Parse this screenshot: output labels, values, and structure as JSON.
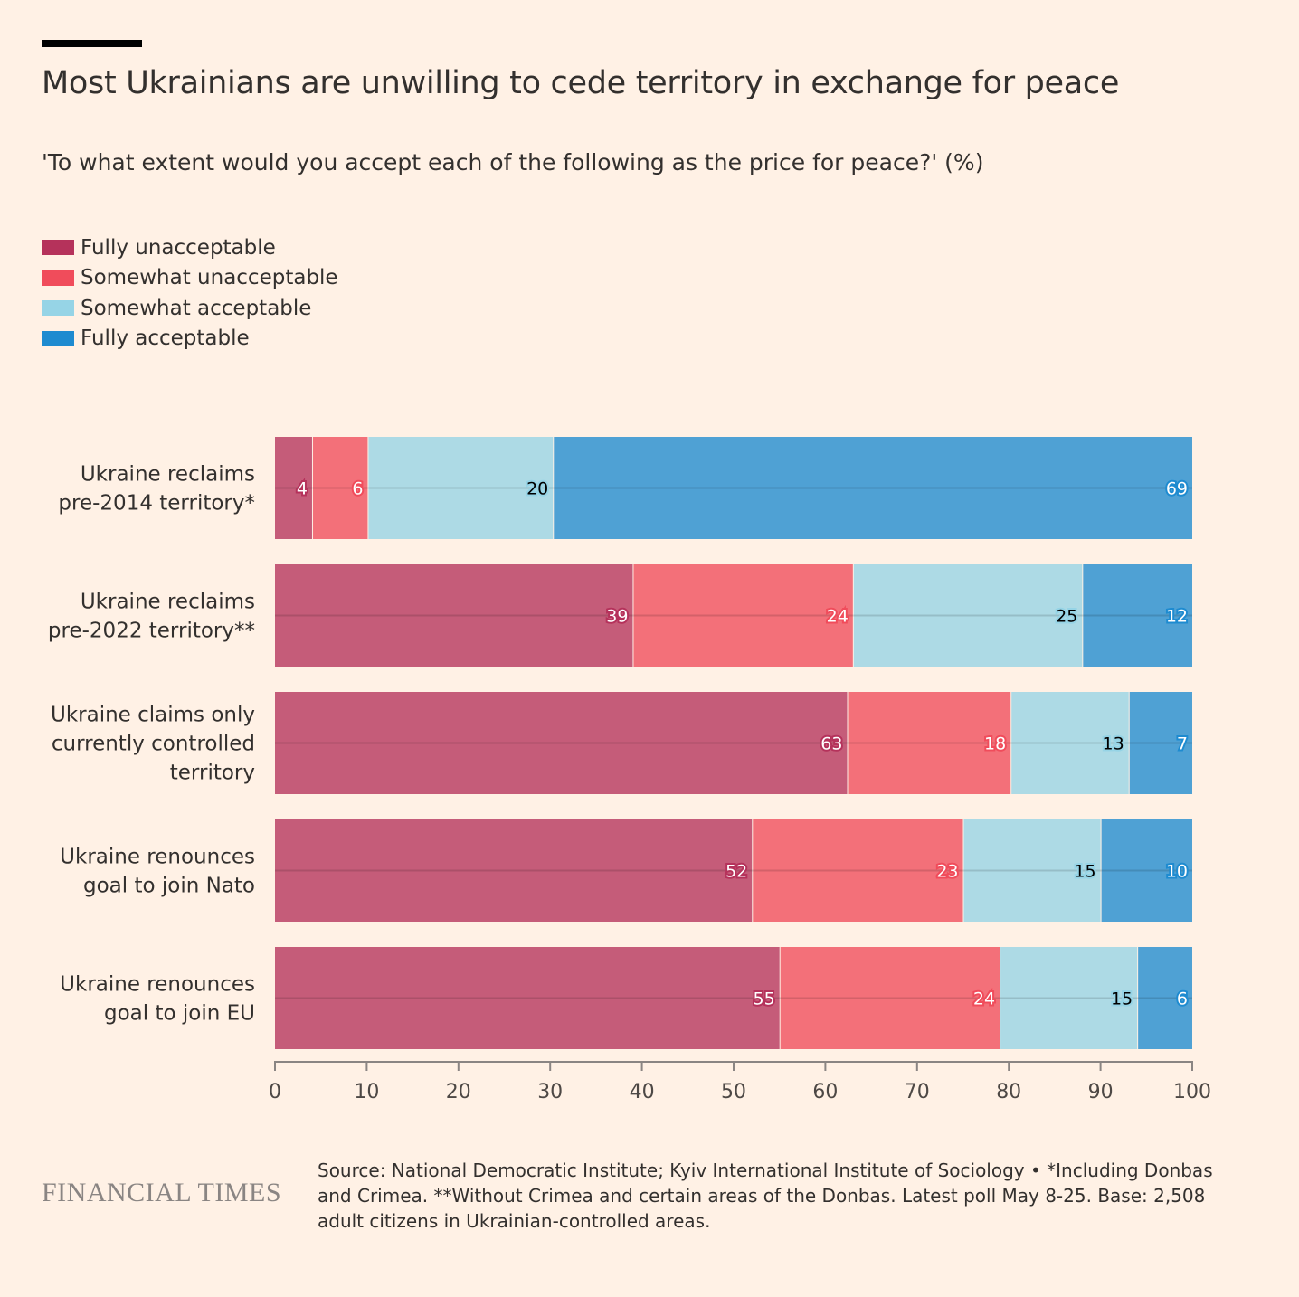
{
  "title": "Most Ukrainians are unwilling to cede territory in exchange for peace",
  "subtitle": "'To what extent would you accept each of the following as the price for peace?' (%)",
  "legend": [
    {
      "label": "Fully unacceptable",
      "color": "#b5325b"
    },
    {
      "label": "Somewhat unacceptable",
      "color": "#f04c5b"
    },
    {
      "label": "Somewhat acceptable",
      "color": "#96d4e6"
    },
    {
      "label": "Fully acceptable",
      "color": "#1e8bd0"
    }
  ],
  "chart_data": {
    "type": "bar",
    "orientation": "horizontal",
    "stacked": true,
    "categories": [
      [
        "Ukraine reclaims",
        "pre-2014 territory*"
      ],
      [
        "Ukraine reclaims",
        "pre-2022 territory**"
      ],
      [
        "Ukraine claims only",
        "currently controlled",
        "territory"
      ],
      [
        "Ukraine renounces",
        "goal to join Nato"
      ],
      [
        "Ukraine renounces",
        "goal to join EU"
      ]
    ],
    "series": [
      {
        "name": "Fully unacceptable",
        "values": [
          4,
          39,
          63,
          52,
          55
        ],
        "color": "#b5325b",
        "label_color": "#ffffff"
      },
      {
        "name": "Somewhat unacceptable",
        "values": [
          6,
          24,
          18,
          23,
          24
        ],
        "color": "#f04c5b",
        "label_color": "#ffffff"
      },
      {
        "name": "Somewhat acceptable",
        "values": [
          20,
          25,
          13,
          15,
          15
        ],
        "color": "#96d4e6",
        "label_color": "#000000"
      },
      {
        "name": "Fully acceptable",
        "values": [
          69,
          12,
          7,
          10,
          6
        ],
        "color": "#1e8bd0",
        "label_color": "#ffffff"
      }
    ],
    "xlim": [
      0,
      100
    ],
    "xticks": [
      "0",
      "10",
      "20",
      "30",
      "40",
      "50",
      "60",
      "70",
      "80",
      "90",
      "100"
    ],
    "legend_position": "top-left"
  },
  "footer": {
    "brand": "FINANCIAL TIMES",
    "source": "Source: National Democratic Institute; Kyiv International Institute of Sociology • *Including Donbas and Crimea. **Without Crimea and certain areas of the Donbas. Latest poll May 8-25. Base: 2,508 adult citizens in Ukrainian-controlled areas."
  }
}
